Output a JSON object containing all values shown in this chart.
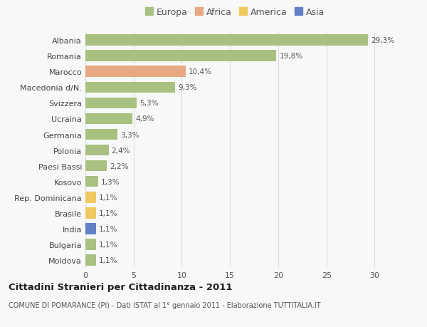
{
  "categories": [
    "Albania",
    "Romania",
    "Marocco",
    "Macedonia d/N.",
    "Svizzera",
    "Ucraina",
    "Germania",
    "Polonia",
    "Paesi Bassi",
    "Kosovo",
    "Rep. Dominicana",
    "Brasile",
    "India",
    "Bulgaria",
    "Moldova"
  ],
  "values": [
    29.3,
    19.8,
    10.4,
    9.3,
    5.3,
    4.9,
    3.3,
    2.4,
    2.2,
    1.3,
    1.1,
    1.1,
    1.1,
    1.1,
    1.1
  ],
  "labels": [
    "29,3%",
    "19,8%",
    "10,4%",
    "9,3%",
    "5,3%",
    "4,9%",
    "3,3%",
    "2,4%",
    "2,2%",
    "1,3%",
    "1,1%",
    "1,1%",
    "1,1%",
    "1,1%",
    "1,1%"
  ],
  "colors": [
    "#a8c080",
    "#a8c080",
    "#e8a882",
    "#a8c080",
    "#a8c080",
    "#a8c080",
    "#a8c080",
    "#a8c080",
    "#a8c080",
    "#a8c080",
    "#f0c860",
    "#f0c860",
    "#6080c8",
    "#a8c080",
    "#a8c080"
  ],
  "legend": {
    "Europa": "#a8c080",
    "Africa": "#e8a882",
    "America": "#f0c860",
    "Asia": "#6080c8"
  },
  "title": "Cittadini Stranieri per Cittadinanza - 2011",
  "subtitle": "COMUNE DI POMARANCE (PI) - Dati ISTAT al 1° gennaio 2011 - Elaborazione TUTTITALIA.IT",
  "xlim": [
    0,
    31
  ],
  "xticks": [
    0,
    5,
    10,
    15,
    20,
    25,
    30
  ],
  "background_color": "#f8f8f8",
  "grid_color": "#dddddd"
}
